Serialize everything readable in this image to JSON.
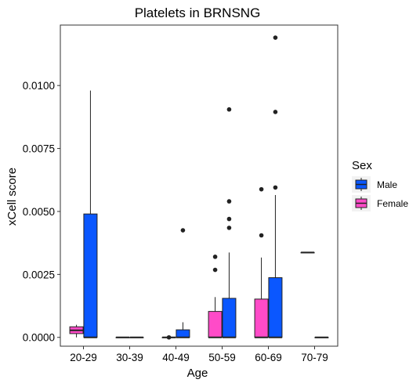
{
  "chart_data": {
    "type": "boxplot",
    "title": "Platelets in BRNSNG",
    "xlabel": "Age",
    "ylabel": "xCell score",
    "ylim": [
      -0.00035,
      0.0124
    ],
    "yticks": [
      "0.0000",
      "0.0025",
      "0.0050",
      "0.0075",
      "0.0100"
    ],
    "ytick_values": [
      0,
      0.0025,
      0.005,
      0.0075,
      0.01
    ],
    "categories": [
      "20-29",
      "30-39",
      "40-49",
      "50-59",
      "60-69",
      "70-79"
    ],
    "grid": false,
    "legend": {
      "title": "Sex",
      "placement": "right",
      "entries": [
        {
          "label": "Male",
          "color": "#0A57FF"
        },
        {
          "label": "Female",
          "color": "#FF4BC8"
        }
      ]
    },
    "series": [
      {
        "name": "Male",
        "color": "#0A57FF",
        "boxes": [
          {
            "category": "20-29",
            "low": 0,
            "q1": 0,
            "median": 0,
            "q3": 0.0049,
            "high": 0.0098,
            "outliers": []
          },
          {
            "category": "30-39",
            "low": 0,
            "q1": 0,
            "median": 0,
            "q3": 0,
            "high": 0,
            "outliers": []
          },
          {
            "category": "40-49",
            "low": 0,
            "q1": 0,
            "median": 0,
            "q3": 0.0003,
            "high": 0.0006,
            "outliers": [
              0.00425
            ]
          },
          {
            "category": "50-59",
            "low": 0,
            "q1": 0,
            "median": 0,
            "q3": 0.00155,
            "high": 0.00337,
            "outliers": [
              0.00435,
              0.0047,
              0.0054,
              0.00905
            ]
          },
          {
            "category": "60-69",
            "low": 0,
            "q1": 0,
            "median": 0,
            "q3": 0.00237,
            "high": 0.00565,
            "outliers": [
              0.00595,
              0.00895,
              0.0119
            ]
          },
          {
            "category": "70-79",
            "low": 0,
            "q1": 0,
            "median": 0,
            "q3": 0,
            "high": 0,
            "outliers": []
          }
        ]
      },
      {
        "name": "Female",
        "color": "#FF4BC8",
        "boxes": [
          {
            "category": "20-29",
            "low": 0,
            "q1": 0.00015,
            "median": 0.00028,
            "q3": 0.00042,
            "high": 0.0005,
            "outliers": []
          },
          {
            "category": "30-39",
            "low": 0,
            "q1": 0,
            "median": 0,
            "q3": 0,
            "high": 0,
            "outliers": []
          },
          {
            "category": "40-49",
            "low": 0,
            "q1": 0,
            "median": 0,
            "q3": 0,
            "high": 0,
            "outliers": [
              0.0
            ]
          },
          {
            "category": "50-59",
            "low": 0,
            "q1": 0,
            "median": 0,
            "q3": 0.00103,
            "high": 0.0016,
            "outliers": [
              0.00268,
              0.0032
            ]
          },
          {
            "category": "60-69",
            "low": 0,
            "q1": 0,
            "median": 0,
            "q3": 0.00152,
            "high": 0.00317,
            "outliers": [
              0.00405,
              0.00588
            ]
          },
          {
            "category": "70-79",
            "low": 0.00337,
            "q1": 0.00337,
            "median": 0.00337,
            "q3": 0.00337,
            "high": 0.00337,
            "outliers": []
          }
        ]
      }
    ]
  }
}
